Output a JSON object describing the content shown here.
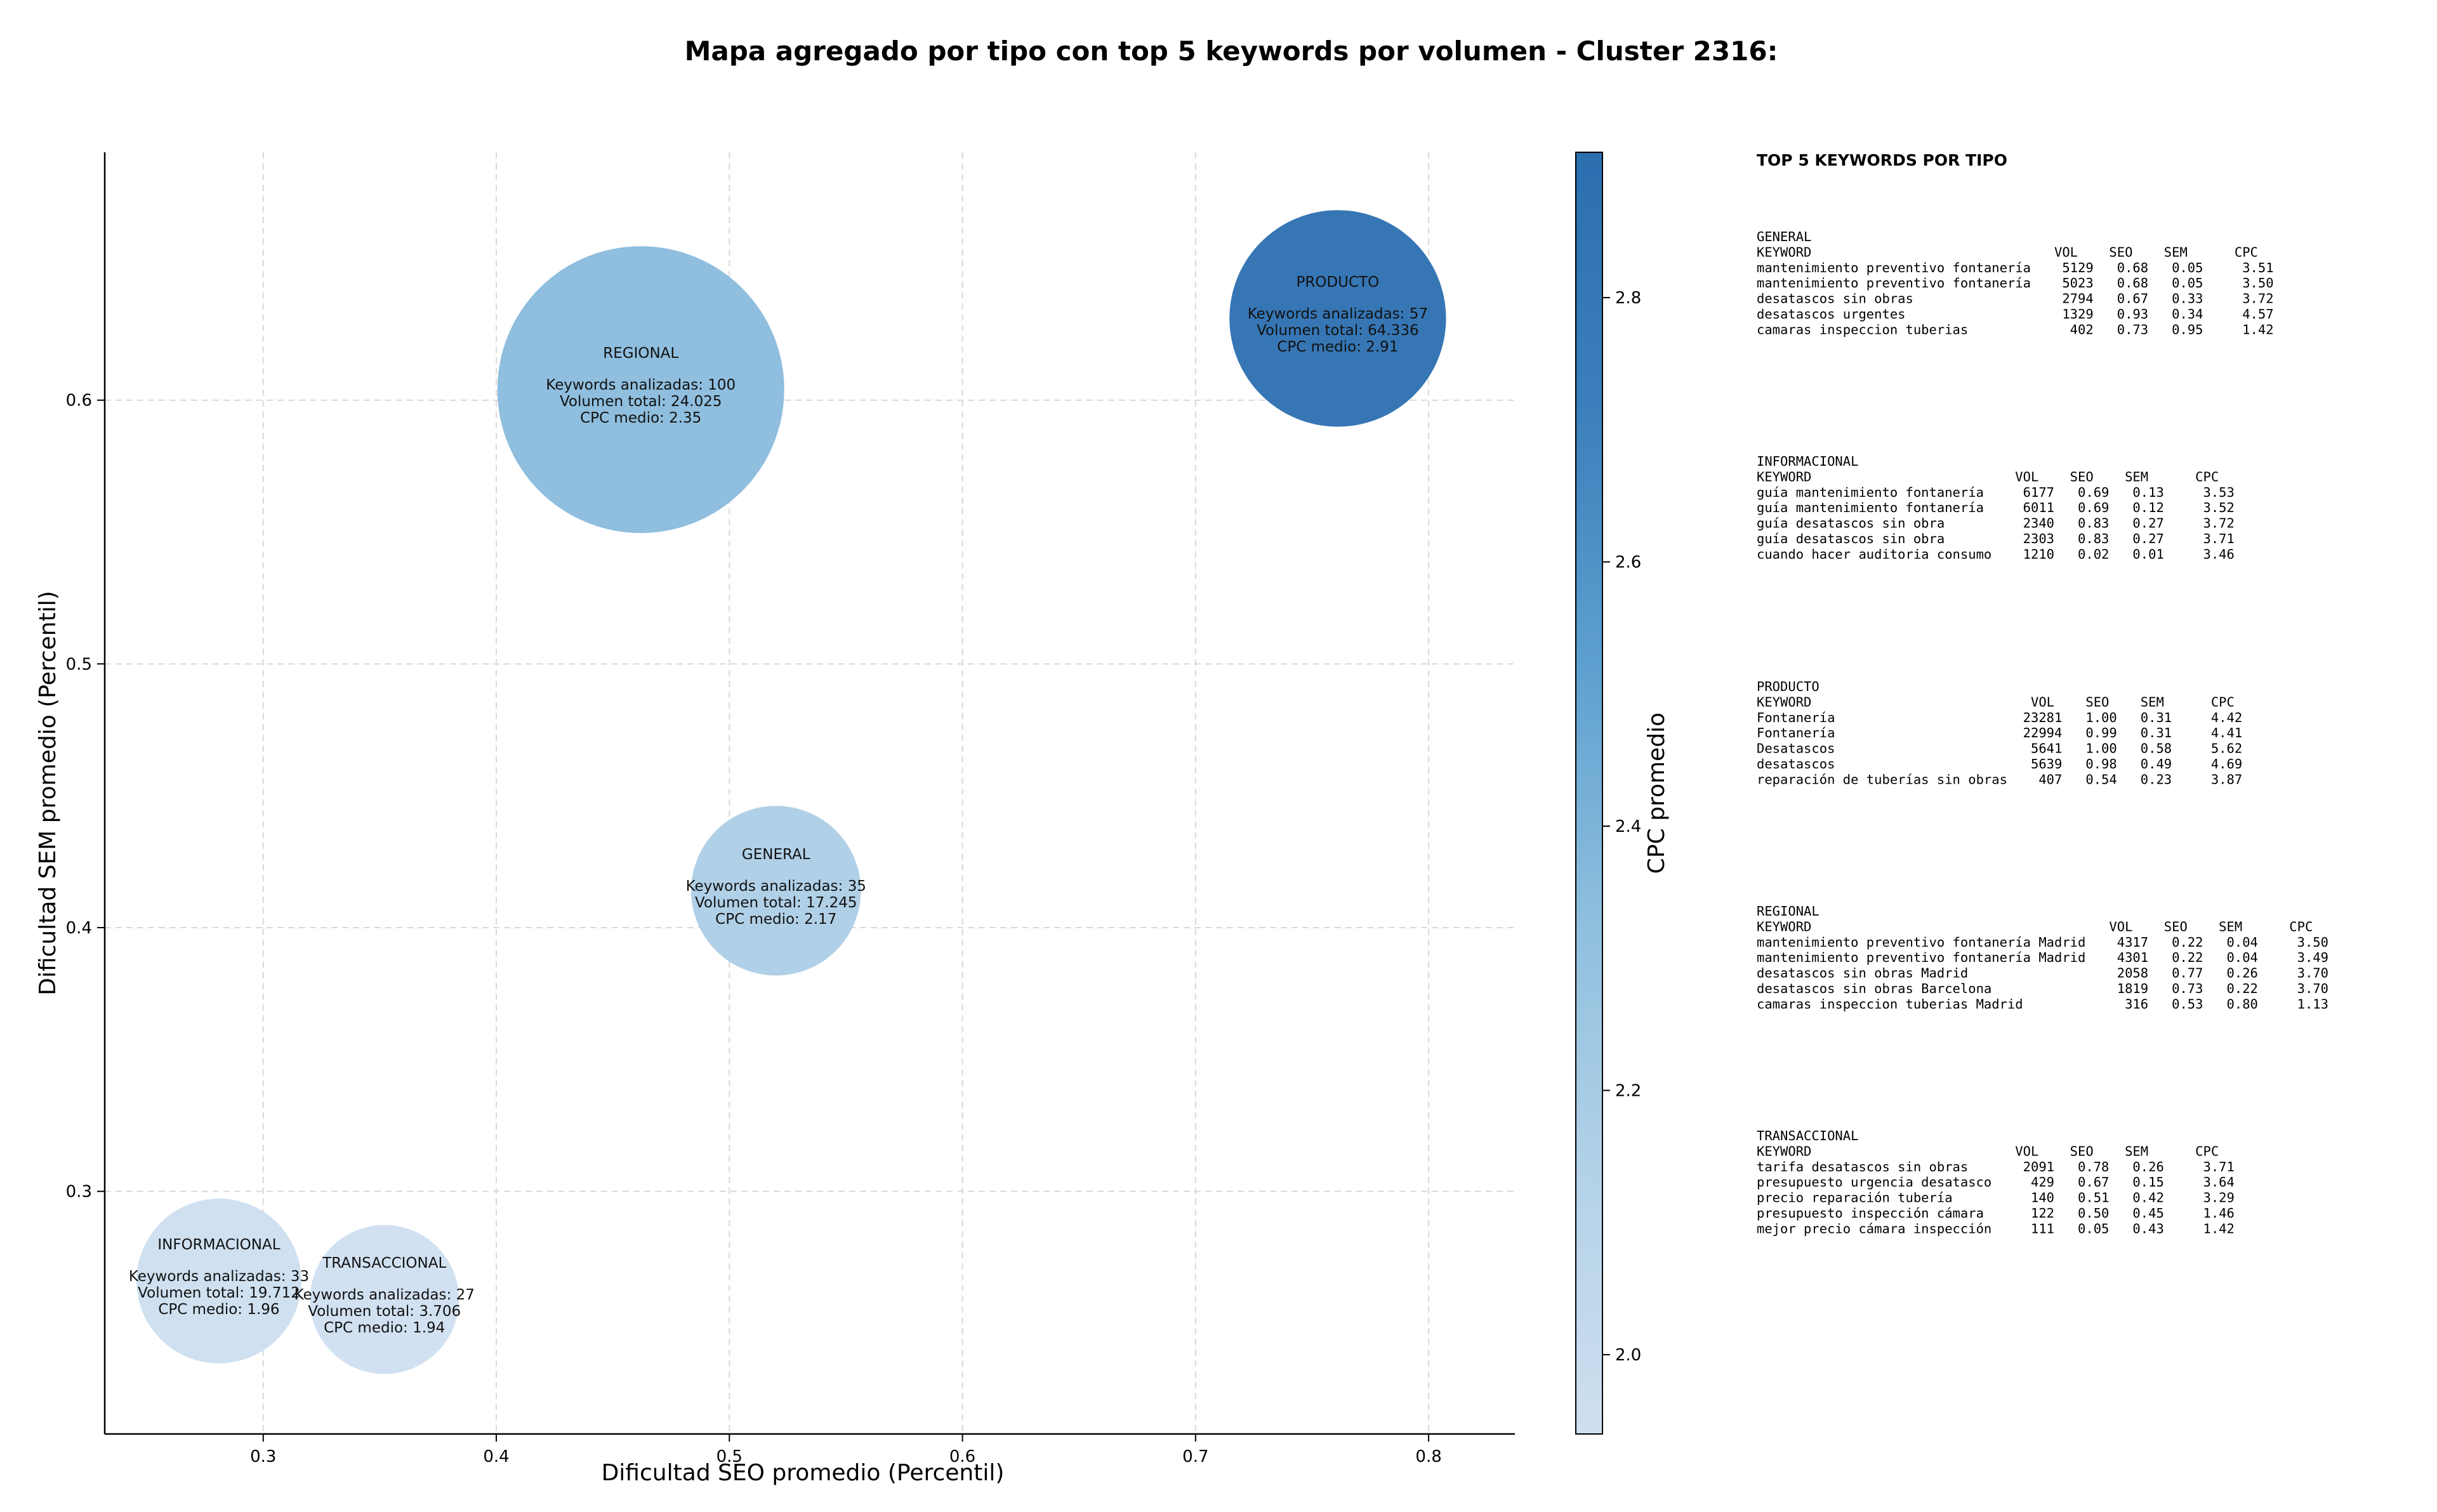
{
  "chart_data": {
    "type": "scatter",
    "title": "Mapa agregado por tipo con top 5 keywords por volumen - Cluster 2316:",
    "xlabel": "Dificultad SEO promedio (Percentil)",
    "ylabel": "Dificultad SEM promedio (Percentil)",
    "xlim": [
      0.232,
      0.837
    ],
    "ylim": [
      0.208,
      0.694
    ],
    "xticks": [
      0.3,
      0.4,
      0.5,
      0.6,
      0.7,
      0.8
    ],
    "yticks": [
      0.3,
      0.4,
      0.5,
      0.6
    ],
    "grid": true,
    "colorbar": {
      "label": "CPC promedio",
      "min": 1.94,
      "max": 2.91,
      "ticks": [
        2.0,
        2.2,
        2.4,
        2.6,
        2.8
      ],
      "colormap": [
        "#cfdff0",
        "#b3d2e8",
        "#8fbfde",
        "#5da0cf",
        "#3b7fbc",
        "#2b6fb0"
      ]
    },
    "label_templates": {
      "keywords": "Keywords analizadas: ",
      "volume": "Volumen total: ",
      "cpc": "CPC medio: "
    },
    "points": [
      {
        "name": "PRODUCTO",
        "x": 0.761,
        "y": 0.631,
        "keywords": 57,
        "volume": "64.336",
        "cpc": 2.91
      },
      {
        "name": "REGIONAL",
        "x": 0.462,
        "y": 0.604,
        "keywords": 100,
        "volume": "24.025",
        "cpc": 2.35
      },
      {
        "name": "GENERAL",
        "x": 0.52,
        "y": 0.414,
        "keywords": 35,
        "volume": "17.245",
        "cpc": 2.17
      },
      {
        "name": "INFORMACIONAL",
        "x": 0.281,
        "y": 0.266,
        "keywords": 33,
        "volume": "19.712",
        "cpc": 1.96
      },
      {
        "name": "TRANSACCIONAL",
        "x": 0.352,
        "y": 0.259,
        "keywords": 27,
        "volume": "3.706",
        "cpc": 1.94
      }
    ],
    "cpc_format": {
      "PRODUCTO": "2.91",
      "REGIONAL": "2.35",
      "GENERAL": "2.17",
      "INFORMACIONAL": "1.96",
      "TRANSACCIONAL": "1.94"
    }
  },
  "side_panel": {
    "title": "TOP 5 KEYWORDS POR TIPO",
    "groups": [
      {
        "name": "GENERAL",
        "header": "KEYWORD                               VOL    SEO    SEM      CPC",
        "rows": [
          "mantenimiento preventivo fontanería    5129   0.68   0.05     3.51",
          "mantenimiento preventivo fontanería    5023   0.68   0.05     3.50",
          "desatascos sin obras                   2794   0.67   0.33     3.72",
          "desatascos urgentes                    1329   0.93   0.34     4.57",
          "camaras inspeccion tuberias             402   0.73   0.95     1.42"
        ]
      },
      {
        "name": "INFORMACIONAL",
        "header": "KEYWORD                          VOL    SEO    SEM      CPC",
        "rows": [
          "guía mantenimiento fontanería     6177   0.69   0.13     3.53",
          "guía mantenimiento fontanería     6011   0.69   0.12     3.52",
          "guía desatascos sin obra          2340   0.83   0.27     3.72",
          "guía desatascos sin obra          2303   0.83   0.27     3.71",
          "cuando hacer auditoria consumo    1210   0.02   0.01     3.46"
        ]
      },
      {
        "name": "PRODUCTO",
        "header": "KEYWORD                            VOL    SEO    SEM      CPC",
        "rows": [
          "Fontanería                        23281   1.00   0.31     4.42",
          "Fontanería                        22994   0.99   0.31     4.41",
          "Desatascos                         5641   1.00   0.58     5.62",
          "desatascos                         5639   0.98   0.49     4.69",
          "reparación de tuberías sin obras    407   0.54   0.23     3.87"
        ]
      },
      {
        "name": "REGIONAL",
        "header": "KEYWORD                                      VOL    SEO    SEM      CPC",
        "rows": [
          "mantenimiento preventivo fontanería Madrid    4317   0.22   0.04     3.50",
          "mantenimiento preventivo fontanería Madrid    4301   0.22   0.04     3.49",
          "desatascos sin obras Madrid                   2058   0.77   0.26     3.70",
          "desatascos sin obras Barcelona                1819   0.73   0.22     3.70",
          "camaras inspeccion tuberias Madrid             316   0.53   0.80     1.13"
        ]
      },
      {
        "name": "TRANSACCIONAL",
        "header": "KEYWORD                          VOL    SEO    SEM      CPC",
        "rows": [
          "tarifa desatascos sin obras       2091   0.78   0.26     3.71",
          "presupuesto urgencia desatasco     429   0.67   0.15     3.64",
          "precio reparación tubería          140   0.51   0.42     3.29",
          "presupuesto inspección cámara      122   0.50   0.45     1.46",
          "mejor precio cámara inspección     111   0.05   0.43     1.42"
        ]
      }
    ]
  }
}
